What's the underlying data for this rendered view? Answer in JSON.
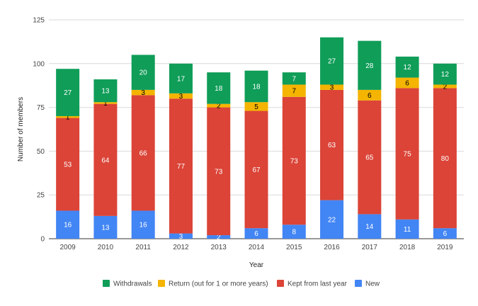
{
  "chart_data": {
    "type": "bar",
    "stacked": true,
    "title": "",
    "xlabel": "Year",
    "ylabel": "Number of members",
    "ylim": [
      0,
      125
    ],
    "yticks": [
      0,
      25,
      50,
      75,
      100,
      125
    ],
    "grid": true,
    "legend_position": "bottom",
    "categories": [
      "2009",
      "2010",
      "2011",
      "2012",
      "2013",
      "2014",
      "2015",
      "2016",
      "2017",
      "2018",
      "2019"
    ],
    "series": [
      {
        "name": "New",
        "color": "#4285f4",
        "label_color": "#ffffff",
        "values": [
          16,
          13,
          16,
          3,
          2,
          6,
          8,
          22,
          14,
          11,
          6
        ]
      },
      {
        "name": "Kept from last year",
        "color": "#db4437",
        "label_color": "#ffffff",
        "values": [
          53,
          64,
          66,
          77,
          73,
          67,
          73,
          63,
          65,
          75,
          80
        ]
      },
      {
        "name": "Return (out for 1 or more years)",
        "color": "#f4b400",
        "label_color": "#000000",
        "values": [
          1,
          1,
          3,
          3,
          2,
          5,
          7,
          3,
          6,
          6,
          2
        ]
      },
      {
        "name": "Withdrawals",
        "color": "#0f9d58",
        "label_color": "#ffffff",
        "values": [
          27,
          13,
          20,
          17,
          18,
          18,
          7,
          27,
          28,
          12,
          12
        ]
      }
    ],
    "legend_order": [
      "Withdrawals",
      "Return (out for 1 or more years)",
      "Kept from last year",
      "New"
    ]
  }
}
